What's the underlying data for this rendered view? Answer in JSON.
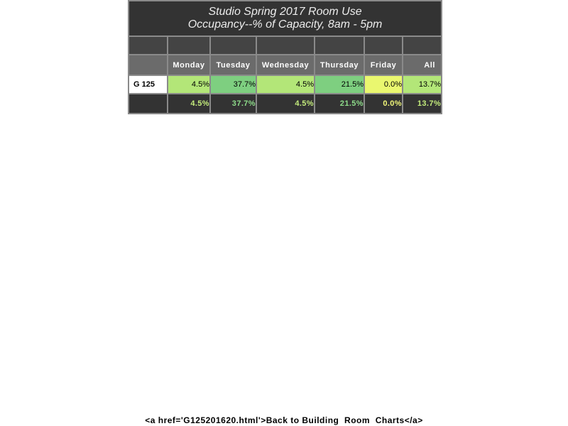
{
  "table": {
    "title_line1": "Studio Spring 2017 Room Use",
    "title_line2": "Occupancy--% of Capacity, 8am - 5pm",
    "headers": [
      "Monday",
      "Tuesday",
      "Wednesday",
      "Thursday",
      "Friday",
      "All"
    ],
    "rows": [
      {
        "room": "G 125",
        "values": [
          "4.5%",
          "37.7%",
          "4.5%",
          "21.5%",
          "0.0%",
          "13.7%"
        ],
        "colors": [
          "#b3e678",
          "#7ecf80",
          "#b3e678",
          "#7ecf80",
          "#eaf76f",
          "#b3e678"
        ]
      }
    ],
    "totals": {
      "values": [
        "4.5%",
        "37.7%",
        "4.5%",
        "21.5%",
        "0.0%",
        "13.7%"
      ],
      "colors": [
        "#c4ec7c",
        "#8edc8a",
        "#c4ec7c",
        "#8edc8a",
        "#f2f87a",
        "#c4ec7c"
      ]
    }
  },
  "footer": {
    "link_text": "<a href='G125201620.html'>Back to Building  Room  Charts</a>"
  }
}
